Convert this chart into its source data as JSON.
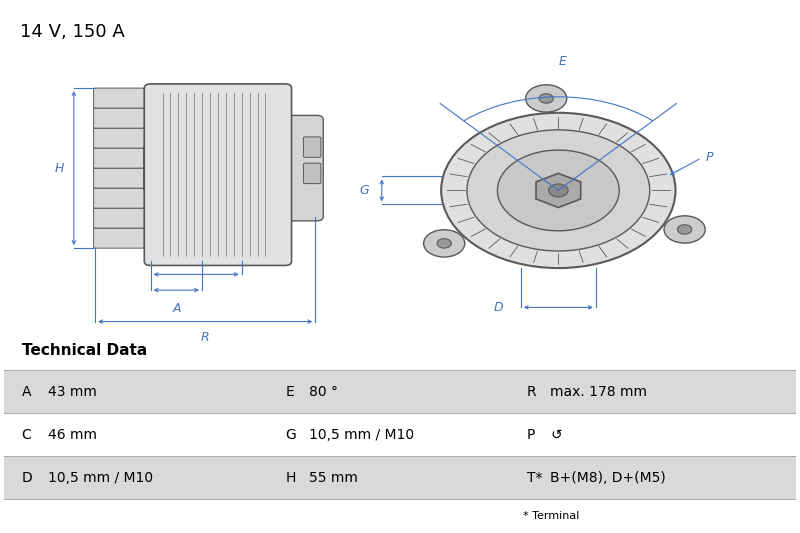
{
  "title": "14 V, 150 A",
  "bg_color": "#ffffff",
  "table_header": "Technical Data",
  "table_rows": [
    [
      "A",
      "43 mm",
      "E",
      "80 °",
      "R",
      "max. 178 mm"
    ],
    [
      "C",
      "46 mm",
      "G",
      "10,5 mm / M10",
      "P",
      "↺"
    ],
    [
      "D",
      "10,5 mm / M10",
      "H",
      "55 mm",
      "T*",
      "B+(M8), D+(M5)"
    ]
  ],
  "table_footnote": "* Terminal",
  "row_bg_colors": [
    "#d9d9d9",
    "#ffffff",
    "#d9d9d9"
  ],
  "dim_color": "#4472c4",
  "drawing_color": "#595959",
  "label_color": "#4472c4"
}
